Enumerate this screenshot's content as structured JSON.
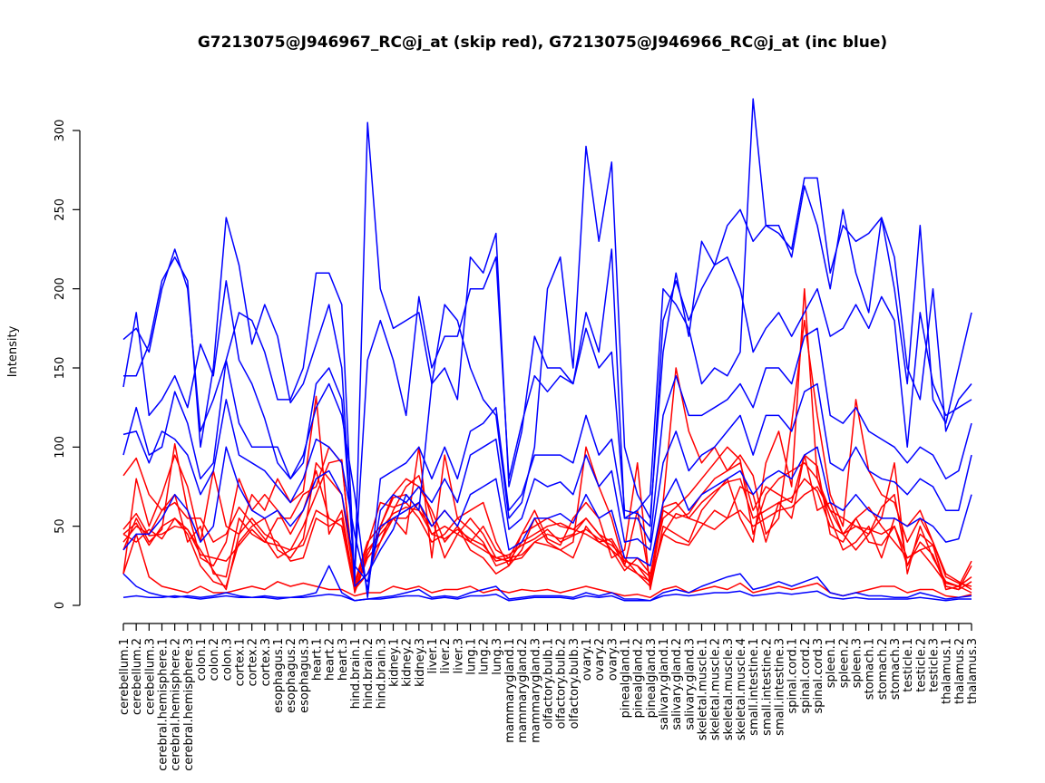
{
  "chart_data": {
    "type": "line",
    "title": "G7213075@J946967_RC@j_at (skip red), G7213075@J946966_RC@j_at (inc blue)",
    "xlabel": "",
    "ylabel": "Intensity",
    "ylim": [
      0,
      300
    ],
    "yticks": [
      0,
      50,
      100,
      150,
      200,
      250,
      300
    ],
    "grid": false,
    "legend": "none",
    "categories": [
      "cerebellum.1",
      "cerebellum.2",
      "cerebellum.3",
      "cerebral.hemisphere.1",
      "cerebral.hemisphere.2",
      "cerebral.hemisphere.3",
      "colon.1",
      "colon.2",
      "colon.3",
      "cortex.1",
      "cortex.2",
      "cortex.3",
      "esophagus.1",
      "esophagus.2",
      "esophagus.3",
      "heart.1",
      "heart.2",
      "heart.3",
      "hind.brain.1",
      "hind.brain.2",
      "hind.brain.3",
      "kidney.1",
      "kidney.2",
      "kidney.3",
      "liver.1",
      "liver.2",
      "liver.3",
      "lung.1",
      "lung.2",
      "lung.3",
      "mammarygland.1",
      "mammarygland.2",
      "mammarygland.3",
      "olfactory.bulb.1",
      "olfactory.bulb.2",
      "olfactory.bulb.3",
      "ovary.1",
      "ovary.2",
      "ovary.3",
      "pinealgland.1",
      "pinealgland.2",
      "pinealgland.3",
      "salivary.gland.1",
      "salivary.gland.2",
      "salivary.gland.3",
      "skeletal.muscle.1",
      "skeletal.muscle.2",
      "skeletal.muscle.3",
      "skeletal.muscle.4",
      "small.intestine.1",
      "small.intestine.2",
      "small.intestine.3",
      "spinal.cord.1",
      "spinal.cord.2",
      "spinal.cord.3",
      "spleen.1",
      "spleen.2",
      "spleen.3",
      "stomach.1",
      "stomach.2",
      "stomach.3",
      "testicle.1",
      "testicle.2",
      "testicle.3",
      "thalamus.1",
      "thalamus.2",
      "thalamus.3"
    ],
    "series": [
      {
        "color": "#ff0000",
        "values": [
          48,
          58,
          44,
          45,
          50,
          48,
          35,
          22,
          10,
          45,
          55,
          45,
          40,
          28,
          30,
          55,
          50,
          55,
          12,
          38,
          65,
          62,
          65,
          55,
          40,
          45,
          55,
          48,
          40,
          25,
          28,
          40,
          45,
          50,
          52,
          48,
          55,
          45,
          40,
          25,
          20,
          12,
          60,
          55,
          58,
          70,
          80,
          85,
          90,
          60,
          75,
          70,
          65,
          95,
          88,
          45,
          40,
          55,
          62,
          50,
          40,
          30,
          35,
          25,
          14,
          12,
          8
        ]
      },
      {
        "color": "#ff0000",
        "values": [
          82,
          93,
          70,
          60,
          65,
          55,
          55,
          40,
          45,
          62,
          52,
          42,
          30,
          35,
          50,
          70,
          90,
          92,
          8,
          30,
          40,
          60,
          75,
          82,
          55,
          30,
          45,
          40,
          35,
          30,
          32,
          38,
          42,
          48,
          40,
          44,
          48,
          42,
          38,
          30,
          20,
          15,
          62,
          65,
          55,
          52,
          48,
          55,
          60,
          50,
          55,
          60,
          62,
          70,
          75,
          60,
          55,
          50,
          45,
          62,
          70,
          25,
          45,
          38,
          12,
          10,
          25
        ]
      },
      {
        "color": "#ff0000",
        "values": [
          20,
          80,
          50,
          70,
          95,
          75,
          40,
          85,
          50,
          45,
          70,
          60,
          80,
          65,
          72,
          132,
          45,
          60,
          10,
          20,
          40,
          55,
          45,
          100,
          30,
          95,
          55,
          60,
          65,
          40,
          25,
          45,
          60,
          42,
          38,
          55,
          65,
          55,
          30,
          35,
          90,
          10,
          50,
          45,
          40,
          60,
          70,
          80,
          55,
          40,
          90,
          110,
          75,
          200,
          80,
          55,
          35,
          40,
          50,
          30,
          55,
          50,
          60,
          40,
          20,
          15,
          10
        ]
      },
      {
        "color": "#ff0000",
        "values": [
          45,
          40,
          48,
          42,
          55,
          45,
          25,
          15,
          12,
          40,
          50,
          55,
          35,
          30,
          42,
          90,
          80,
          70,
          15,
          40,
          50,
          70,
          80,
          75,
          60,
          40,
          50,
          35,
          30,
          20,
          25,
          35,
          55,
          40,
          35,
          40,
          100,
          75,
          55,
          25,
          60,
          15,
          45,
          40,
          38,
          50,
          60,
          55,
          75,
          70,
          40,
          65,
          55,
          95,
          60,
          65,
          45,
          35,
          45,
          55,
          90,
          20,
          50,
          30,
          15,
          12,
          28
        ]
      },
      {
        "color": "#ff0000",
        "values": [
          20,
          45,
          18,
          12,
          10,
          8,
          12,
          8,
          8,
          10,
          12,
          10,
          15,
          12,
          14,
          12,
          10,
          10,
          6,
          8,
          8,
          12,
          10,
          12,
          8,
          10,
          10,
          12,
          8,
          10,
          8,
          10,
          9,
          10,
          8,
          10,
          12,
          10,
          8,
          6,
          7,
          5,
          10,
          12,
          8,
          10,
          12,
          10,
          14,
          8,
          10,
          12,
          10,
          12,
          14,
          8,
          6,
          8,
          10,
          12,
          12,
          8,
          10,
          10,
          6,
          5,
          7
        ]
      },
      {
        "color": "#ff0000",
        "values": [
          35,
          55,
          40,
          48,
          102,
          60,
          30,
          25,
          40,
          80,
          60,
          70,
          60,
          45,
          60,
          85,
          55,
          50,
          9,
          35,
          45,
          55,
          55,
          65,
          45,
          50,
          45,
          55,
          45,
          30,
          28,
          30,
          40,
          38,
          35,
          30,
          50,
          40,
          42,
          28,
          25,
          18,
          65,
          150,
          110,
          90,
          100,
          85,
          95,
          82,
          45,
          55,
          115,
          180,
          120,
          70,
          50,
          130,
          85,
          70,
          65,
          40,
          55,
          40,
          18,
          14,
          12
        ]
      },
      {
        "color": "#ff0000",
        "values": [
          40,
          50,
          45,
          60,
          70,
          40,
          50,
          20,
          18,
          55,
          45,
          40,
          55,
          55,
          70,
          75,
          100,
          90,
          14,
          40,
          50,
          68,
          70,
          60,
          50,
          60,
          50,
          40,
          50,
          35,
          30,
          45,
          50,
          55,
          50,
          48,
          45,
          40,
          35,
          22,
          30,
          20,
          55,
          62,
          70,
          80,
          90,
          100,
          92,
          45,
          70,
          80,
          85,
          90,
          80,
          60,
          45,
          55,
          40,
          38,
          50,
          30,
          35,
          38,
          10,
          12,
          18
        ]
      },
      {
        "color": "#ff0000",
        "values": [
          45,
          52,
          38,
          50,
          55,
          48,
          32,
          30,
          28,
          38,
          48,
          40,
          38,
          35,
          38,
          60,
          55,
          50,
          10,
          32,
          48,
          58,
          62,
          60,
          45,
          42,
          48,
          42,
          38,
          28,
          30,
          32,
          40,
          45,
          42,
          45,
          55,
          45,
          35,
          28,
          25,
          14,
          45,
          58,
          55,
          65,
          72,
          78,
          80,
          55,
          60,
          65,
          68,
          80,
          72,
          50,
          45,
          50,
          48,
          45,
          50,
          25,
          40,
          32,
          12,
          10,
          15
        ]
      },
      {
        "color": "#0000ff",
        "values": [
          168,
          175,
          160,
          200,
          225,
          200,
          110,
          130,
          155,
          185,
          180,
          160,
          130,
          130,
          150,
          210,
          210,
          190,
          15,
          305,
          200,
          175,
          180,
          185,
          140,
          150,
          130,
          220,
          210,
          235,
          75,
          110,
          170,
          150,
          150,
          140,
          185,
          160,
          225,
          55,
          60,
          70,
          200,
          190,
          175,
          140,
          150,
          145,
          160,
          320,
          240,
          235,
          225,
          270,
          270,
          210,
          240,
          230,
          235,
          245,
          220,
          150,
          130,
          200,
          110,
          130,
          140
        ]
      },
      {
        "color": "#0000ff",
        "values": [
          145,
          145,
          165,
          205,
          220,
          205,
          100,
          150,
          245,
          215,
          165,
          190,
          170,
          128,
          140,
          165,
          190,
          150,
          12,
          20,
          35,
          48,
          70,
          60,
          140,
          190,
          180,
          150,
          130,
          120,
          55,
          65,
          100,
          200,
          220,
          150,
          290,
          230,
          280,
          100,
          70,
          55,
          160,
          210,
          170,
          230,
          215,
          240,
          250,
          230,
          240,
          240,
          220,
          265,
          240,
          200,
          250,
          210,
          185,
          245,
          200,
          140,
          240,
          130,
          115,
          150,
          185
        ]
      },
      {
        "color": "#0000ff",
        "values": [
          138,
          185,
          120,
          130,
          145,
          125,
          165,
          145,
          205,
          155,
          140,
          118,
          90,
          80,
          90,
          140,
          150,
          130,
          20,
          155,
          180,
          155,
          120,
          195,
          150,
          170,
          170,
          200,
          200,
          220,
          80,
          115,
          145,
          135,
          145,
          140,
          175,
          150,
          160,
          60,
          58,
          50,
          180,
          205,
          180,
          200,
          215,
          220,
          200,
          160,
          175,
          185,
          170,
          185,
          200,
          170,
          175,
          190,
          175,
          195,
          180,
          100,
          185,
          140,
          120,
          125,
          130
        ]
      },
      {
        "color": "#0000ff",
        "values": [
          95,
          125,
          95,
          100,
          135,
          115,
          80,
          90,
          155,
          115,
          100,
          100,
          100,
          80,
          95,
          125,
          140,
          120,
          70,
          5,
          80,
          85,
          90,
          100,
          80,
          100,
          80,
          110,
          115,
          125,
          60,
          70,
          95,
          95,
          95,
          90,
          120,
          95,
          105,
          55,
          55,
          40,
          120,
          145,
          120,
          120,
          125,
          130,
          140,
          125,
          150,
          150,
          140,
          170,
          175,
          120,
          115,
          125,
          110,
          105,
          100,
          90,
          100,
          95,
          80,
          85,
          115
        ]
      },
      {
        "color": "#0000ff",
        "values": [
          108,
          110,
          90,
          110,
          105,
          95,
          70,
          85,
          130,
          95,
          90,
          85,
          75,
          65,
          80,
          105,
          100,
          90,
          45,
          10,
          60,
          70,
          65,
          75,
          65,
          80,
          65,
          95,
          100,
          105,
          48,
          55,
          80,
          75,
          78,
          70,
          95,
          75,
          85,
          40,
          42,
          35,
          90,
          110,
          85,
          95,
          100,
          110,
          120,
          95,
          120,
          120,
          110,
          135,
          140,
          90,
          85,
          100,
          85,
          80,
          78,
          70,
          80,
          75,
          60,
          60,
          95
        ]
      },
      {
        "color": "#0000ff",
        "values": [
          35,
          45,
          45,
          55,
          70,
          60,
          40,
          50,
          100,
          75,
          60,
          55,
          60,
          50,
          60,
          80,
          85,
          70,
          25,
          15,
          50,
          55,
          60,
          65,
          50,
          60,
          50,
          70,
          75,
          80,
          35,
          40,
          55,
          55,
          58,
          52,
          70,
          55,
          60,
          30,
          30,
          25,
          65,
          80,
          60,
          70,
          75,
          80,
          85,
          70,
          80,
          85,
          80,
          95,
          100,
          65,
          60,
          70,
          60,
          55,
          55,
          50,
          55,
          50,
          40,
          42,
          70
        ]
      },
      {
        "color": "#0000ff",
        "values": [
          20,
          12,
          8,
          6,
          5,
          6,
          5,
          6,
          8,
          6,
          5,
          6,
          5,
          5,
          6,
          8,
          25,
          8,
          3,
          4,
          5,
          6,
          8,
          10,
          5,
          6,
          5,
          8,
          10,
          12,
          4,
          5,
          6,
          6,
          6,
          5,
          8,
          6,
          8,
          4,
          4,
          3,
          8,
          10,
          8,
          12,
          15,
          18,
          20,
          10,
          12,
          15,
          12,
          15,
          18,
          8,
          6,
          8,
          6,
          6,
          5,
          5,
          8,
          6,
          4,
          5,
          6
        ]
      },
      {
        "color": "#0000ff",
        "values": [
          5,
          6,
          5,
          5,
          6,
          5,
          4,
          5,
          6,
          5,
          5,
          5,
          4,
          5,
          5,
          6,
          7,
          6,
          3,
          4,
          4,
          5,
          6,
          6,
          4,
          5,
          4,
          6,
          6,
          7,
          3,
          4,
          5,
          5,
          5,
          4,
          6,
          5,
          6,
          3,
          3,
          3,
          6,
          7,
          6,
          7,
          8,
          8,
          9,
          6,
          7,
          8,
          7,
          8,
          9,
          5,
          4,
          5,
          4,
          4,
          4,
          4,
          5,
          4,
          3,
          4,
          4
        ]
      }
    ]
  }
}
